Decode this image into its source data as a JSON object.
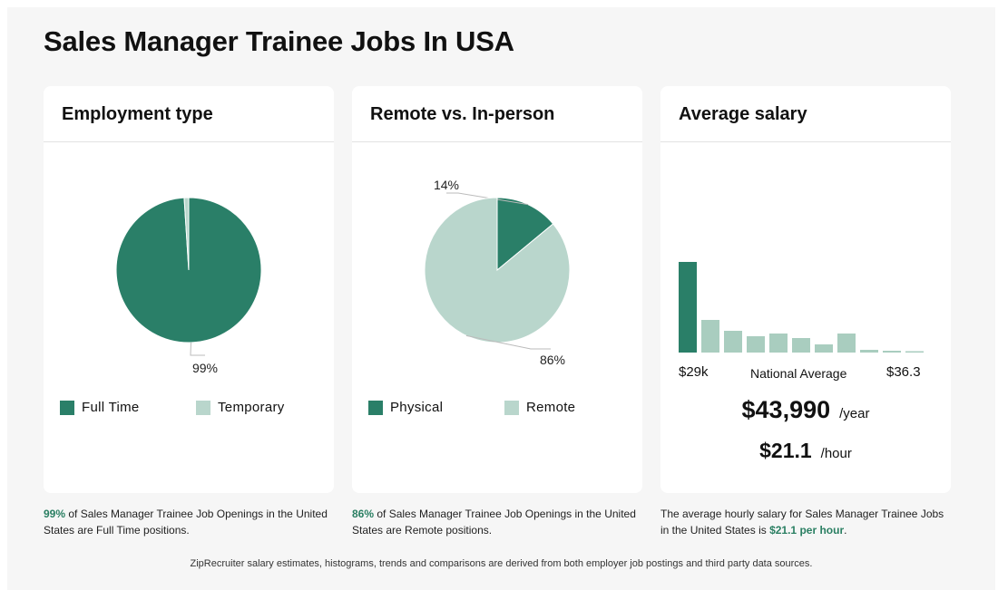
{
  "page": {
    "title": "Sales Manager Trainee Jobs In USA"
  },
  "colors": {
    "dark": "#2a7f68",
    "light": "#b9d6cc",
    "mid": "#a9cdbf",
    "accent": "#2a7f62"
  },
  "employment": {
    "title": "Employment type",
    "caption_pct": "99%",
    "caption_rest": " of Sales Manager Trainee Job Openings in the United States are Full Time positions."
  },
  "remote": {
    "title": "Remote vs. In-person",
    "caption_pct": "86%",
    "caption_rest": " of Sales Manager Trainee Job Openings in the United States are Remote positions."
  },
  "salary": {
    "title": "Average salary",
    "min_label": "$29k",
    "mid_label": "National Average",
    "max_label": "$36.3",
    "yearly_value": "$43,990",
    "yearly_unit": "/year",
    "hourly_value": "$21.1",
    "hourly_unit": "/hour",
    "caption_pre": "The average hourly salary for Sales Manager Trainee Jobs in the United States is ",
    "caption_value": "$21.1 per hour",
    "caption_post": "."
  },
  "footer": "ZipRecruiter salary estimates, histograms, trends and comparisons are derived from both employer job postings and third party data sources.",
  "chart_data": [
    {
      "type": "pie",
      "title": "Employment type",
      "slices": [
        {
          "name": "Full Time",
          "value": 99,
          "label": "99%"
        },
        {
          "name": "Temporary",
          "value": 1
        }
      ],
      "legend": "bottom"
    },
    {
      "type": "pie",
      "title": "Remote vs. In-person",
      "slices": [
        {
          "name": "Physical",
          "value": 14,
          "label": "14%"
        },
        {
          "name": "Remote",
          "value": 86,
          "label": "86%"
        }
      ],
      "legend": "bottom"
    },
    {
      "type": "bar",
      "title": "Average salary",
      "values": [
        100,
        36,
        24,
        18,
        21,
        16,
        9,
        21,
        3,
        2,
        1
      ],
      "highlight_index": 0,
      "xlabels": [
        "$29k",
        "National Average",
        "$36.3"
      ]
    }
  ]
}
